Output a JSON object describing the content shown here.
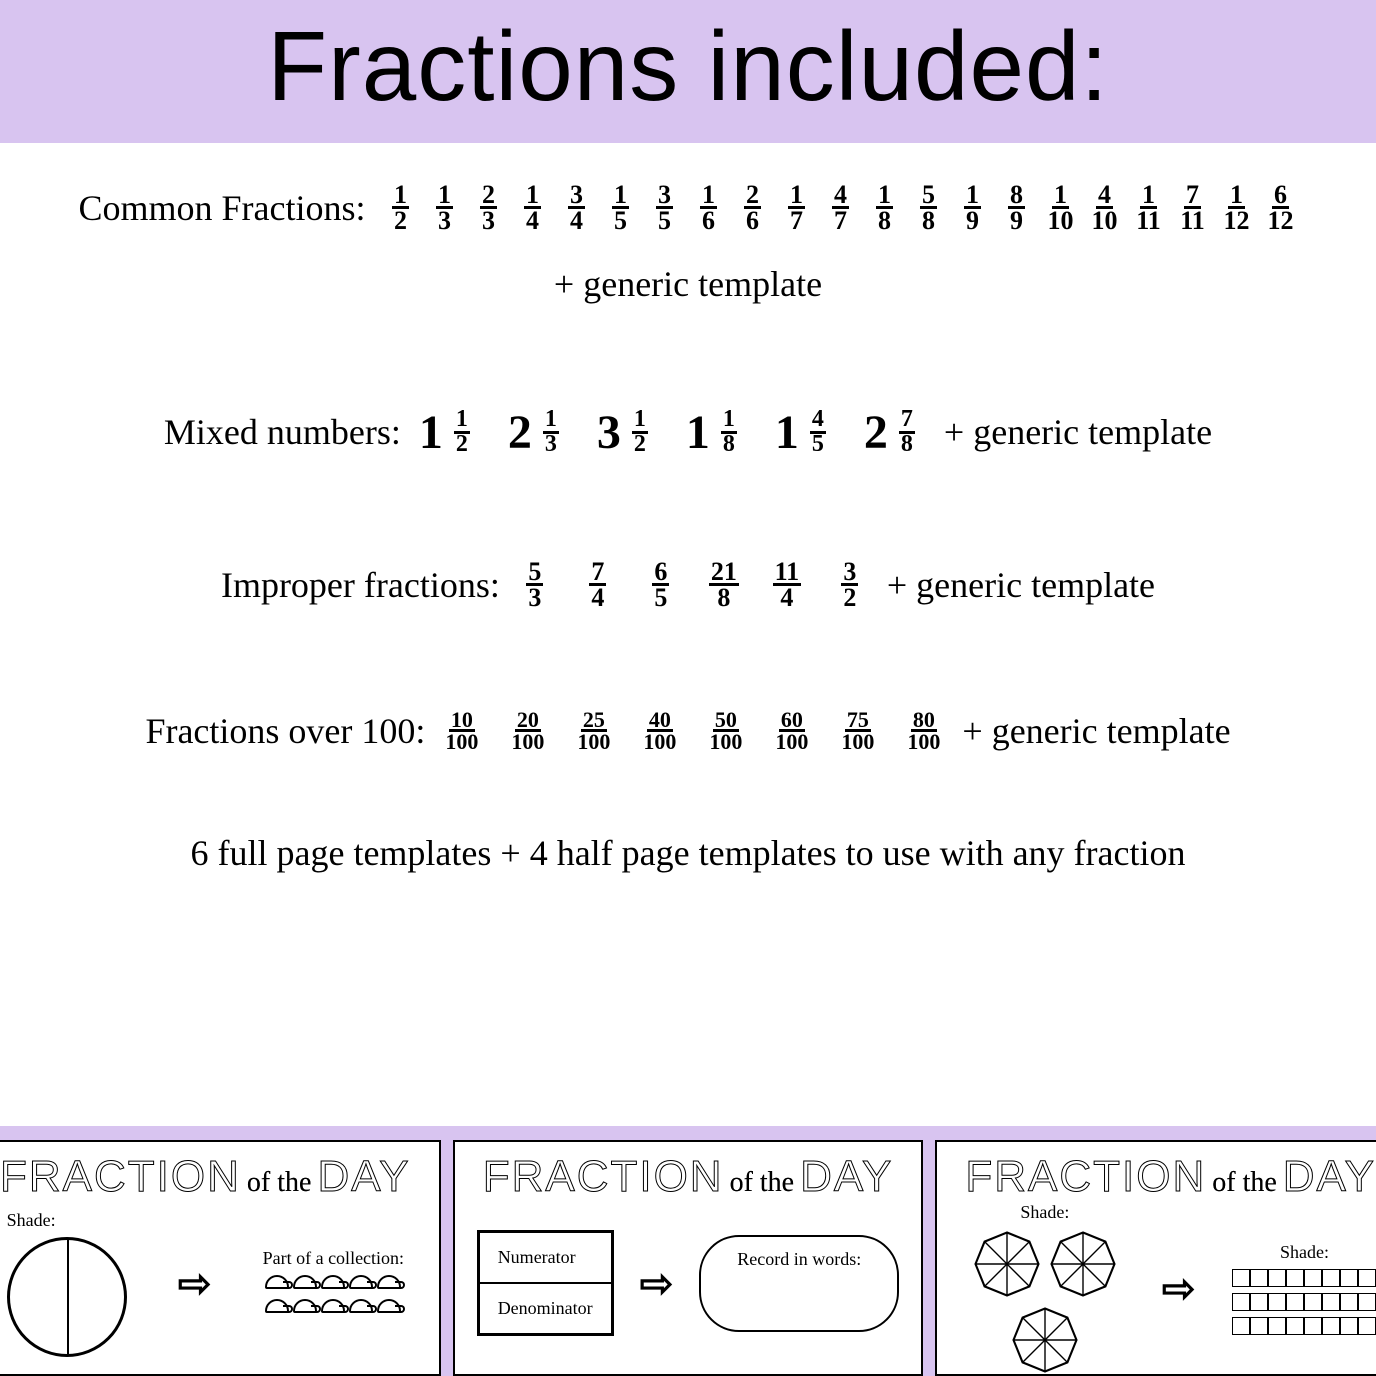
{
  "header": "Fractions included:",
  "header_bg": "#d8c4f0",
  "common": {
    "label": "Common Fractions:",
    "fractions": [
      {
        "n": "1",
        "d": "2"
      },
      {
        "n": "1",
        "d": "3"
      },
      {
        "n": "2",
        "d": "3"
      },
      {
        "n": "1",
        "d": "4"
      },
      {
        "n": "3",
        "d": "4"
      },
      {
        "n": "1",
        "d": "5"
      },
      {
        "n": "3",
        "d": "5"
      },
      {
        "n": "1",
        "d": "6"
      },
      {
        "n": "2",
        "d": "6"
      },
      {
        "n": "1",
        "d": "7"
      },
      {
        "n": "4",
        "d": "7"
      },
      {
        "n": "1",
        "d": "8"
      },
      {
        "n": "5",
        "d": "8"
      },
      {
        "n": "1",
        "d": "9"
      },
      {
        "n": "8",
        "d": "9"
      },
      {
        "n": "1",
        "d": "10"
      },
      {
        "n": "4",
        "d": "10"
      },
      {
        "n": "1",
        "d": "11"
      },
      {
        "n": "7",
        "d": "11"
      },
      {
        "n": "1",
        "d": "12"
      },
      {
        "n": "6",
        "d": "12"
      }
    ],
    "generic": "+ generic template"
  },
  "mixed": {
    "label": "Mixed numbers:",
    "items": [
      {
        "w": "1",
        "n": "1",
        "d": "2"
      },
      {
        "w": "2",
        "n": "1",
        "d": "3"
      },
      {
        "w": "3",
        "n": "1",
        "d": "2"
      },
      {
        "w": "1",
        "n": "1",
        "d": "8"
      },
      {
        "w": "1",
        "n": "4",
        "d": "5"
      },
      {
        "w": "2",
        "n": "7",
        "d": "8"
      }
    ],
    "generic": "+ generic template"
  },
  "improper": {
    "label": "Improper fractions:",
    "fractions": [
      {
        "n": "5",
        "d": "3"
      },
      {
        "n": "7",
        "d": "4"
      },
      {
        "n": "6",
        "d": "5"
      },
      {
        "n": "21",
        "d": "8"
      },
      {
        "n": "11",
        "d": "4"
      },
      {
        "n": "3",
        "d": "2"
      }
    ],
    "generic": "+ generic template"
  },
  "over100": {
    "label": "Fractions over 100:",
    "fractions": [
      {
        "n": "10",
        "d": "100"
      },
      {
        "n": "20",
        "d": "100"
      },
      {
        "n": "25",
        "d": "100"
      },
      {
        "n": "40",
        "d": "100"
      },
      {
        "n": "50",
        "d": "100"
      },
      {
        "n": "60",
        "d": "100"
      },
      {
        "n": "75",
        "d": "100"
      },
      {
        "n": "80",
        "d": "100"
      }
    ],
    "generic": "+ generic template"
  },
  "templates_note": "6 full page templates + 4 half page templates to use with any fraction",
  "cards": {
    "title_main": "FRACTION",
    "title_of": "of the",
    "title_day": "DAY",
    "c1": {
      "shade": "Shade:",
      "collection": "Part of a collection:"
    },
    "c2": {
      "numerator": "Numerator",
      "denominator": "Denominator",
      "record": "Record in words:"
    },
    "c3": {
      "shade": "Shade:"
    }
  }
}
